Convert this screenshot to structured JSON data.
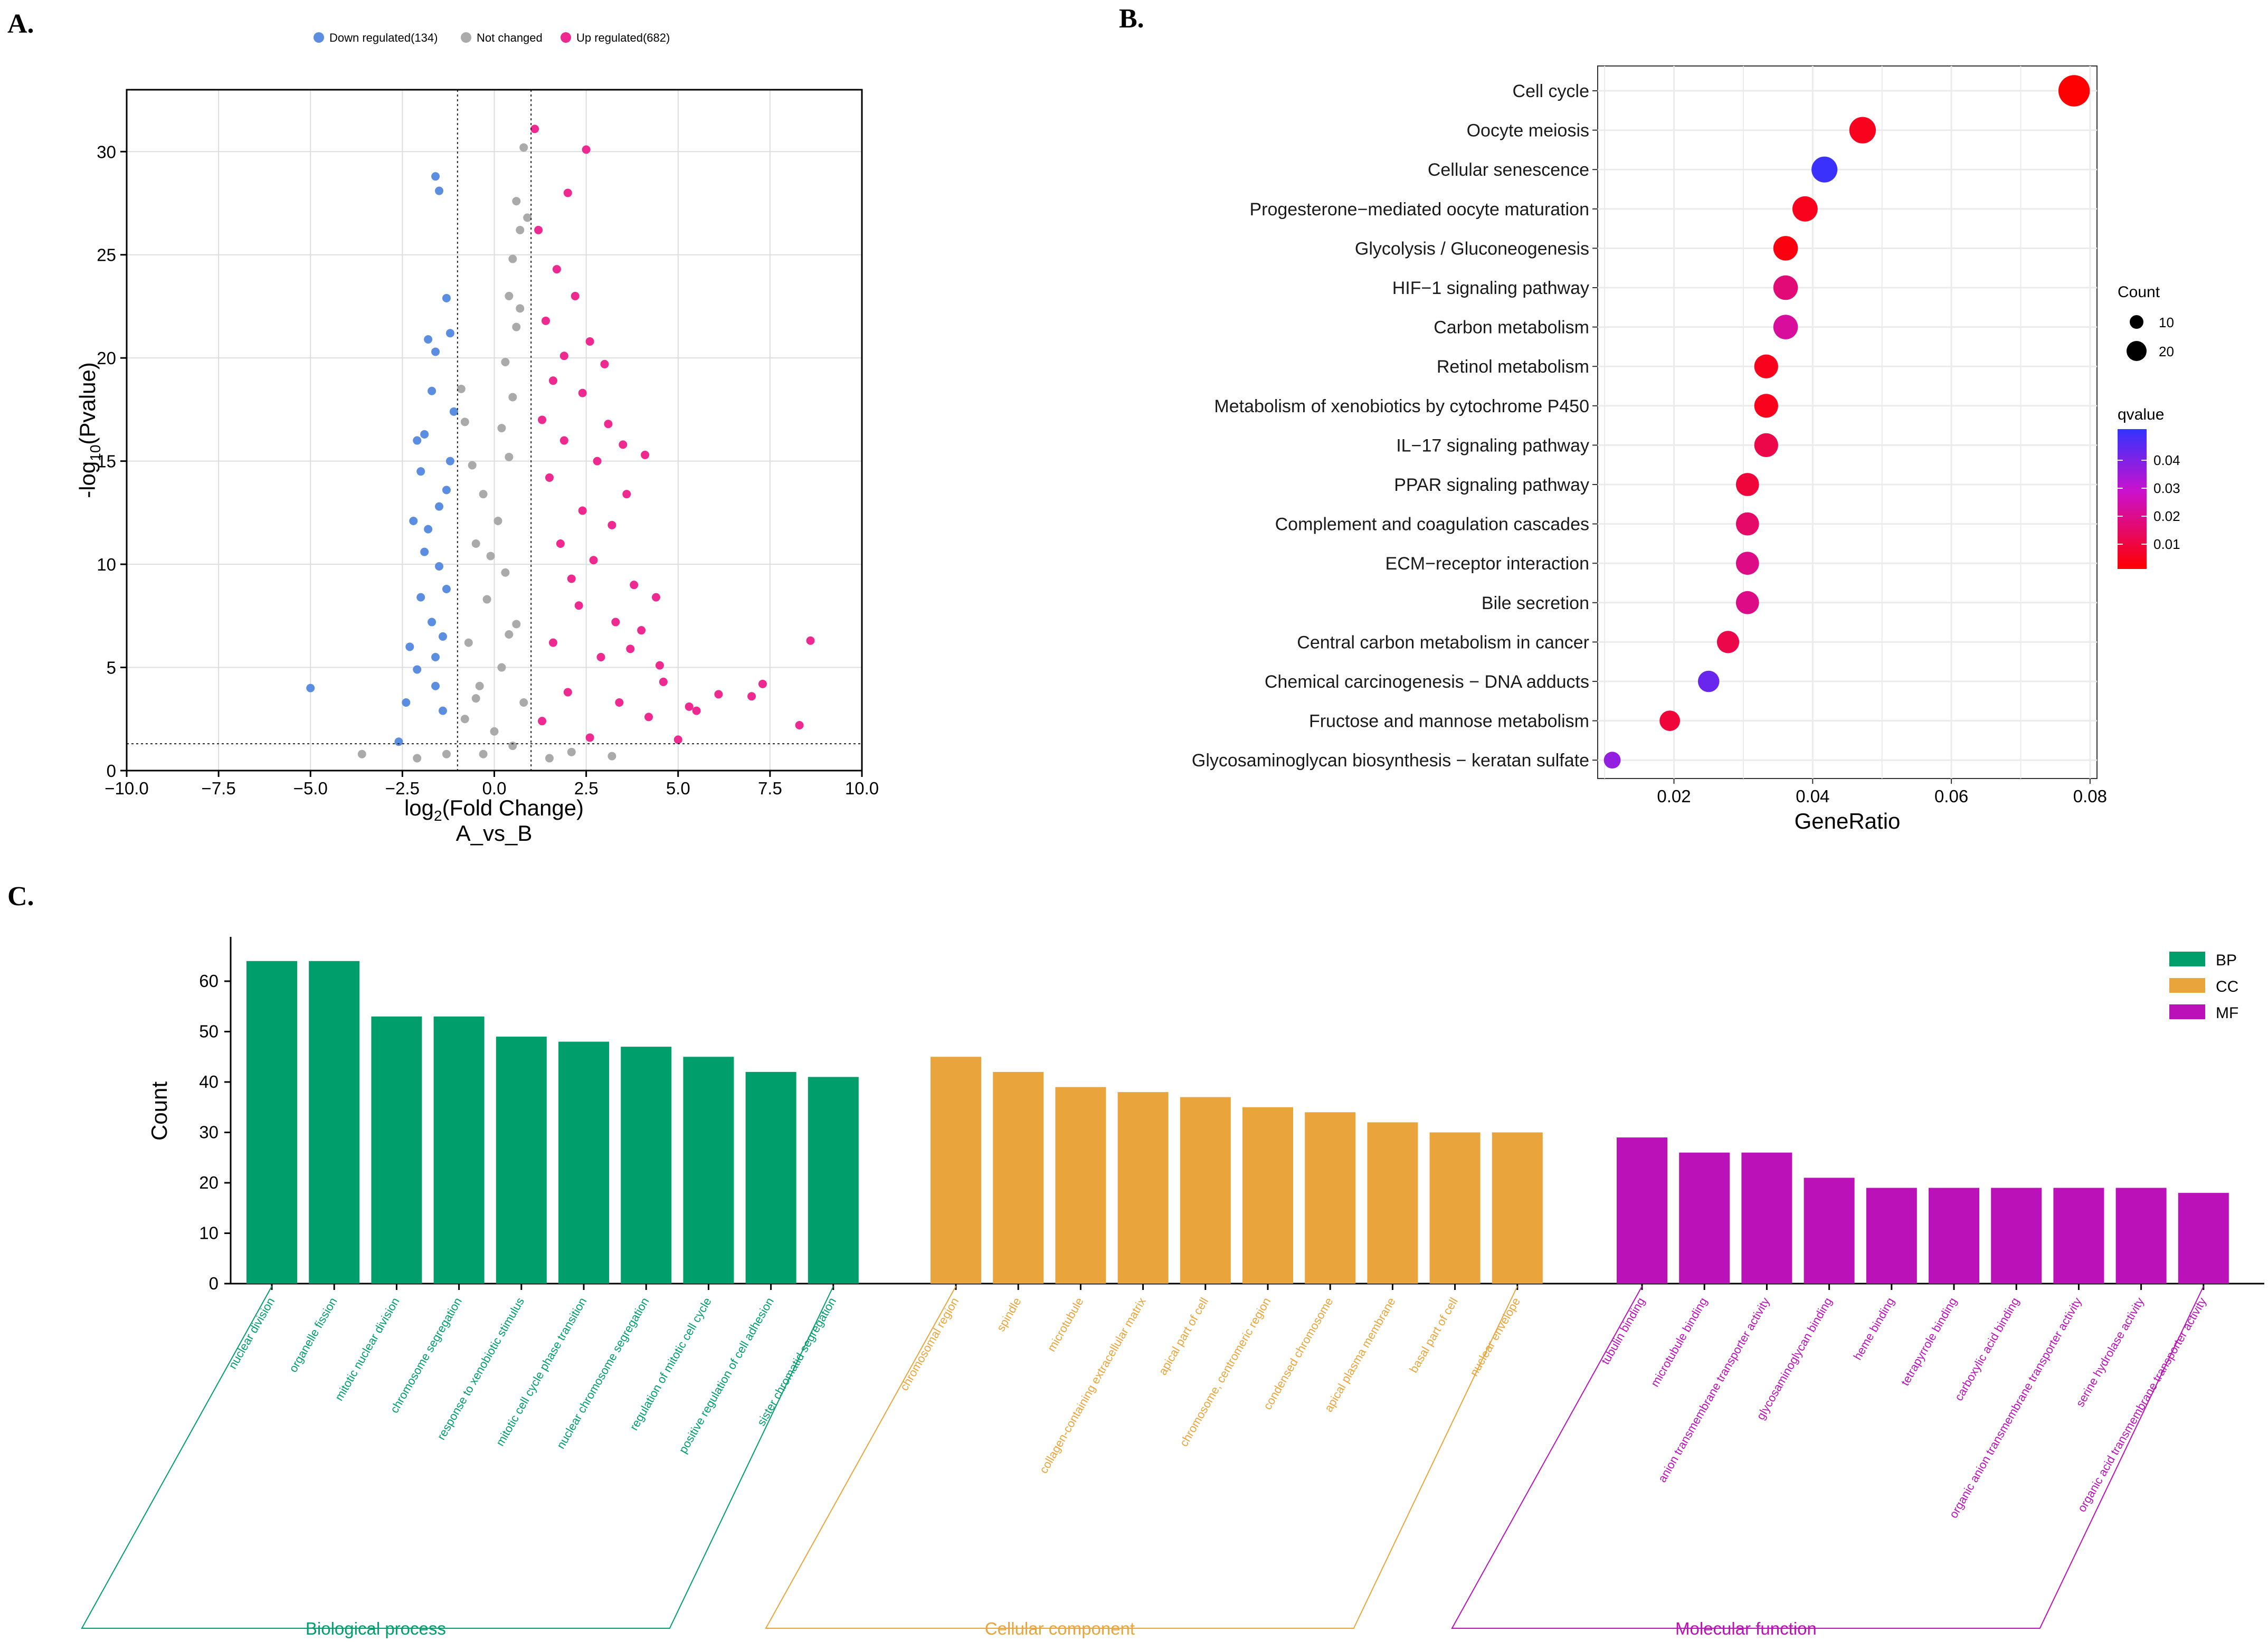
{
  "panels": {
    "a": "A.",
    "b": "B.",
    "c": "C."
  },
  "volcano": {
    "legend": [
      {
        "label": "Down regulated(134)",
        "color": "#5b8ee0"
      },
      {
        "label": "Not changed",
        "color": "#aaaaaa"
      },
      {
        "label": "Up regulated(682)",
        "color": "#ee2a90"
      }
    ],
    "ylabel_prefix": "-log",
    "ylabel_sub": "10",
    "ylabel_suffix": "(Pvalue)",
    "xlabel_prefix": "log",
    "xlabel_sub": "2",
    "xlabel_suffix": "(Fold Change)",
    "xlabel2": "A_vs_B",
    "xlim": [
      -10,
      10
    ],
    "ylim": [
      0,
      33
    ],
    "xticks": [
      "−10.0",
      "−7.5",
      "−5.0",
      "−2.5",
      "0.0",
      "2.5",
      "5.0",
      "7.5",
      "10.0"
    ],
    "yticks": [
      "0",
      "5",
      "10",
      "15",
      "20",
      "25",
      "30"
    ],
    "fc_threshold": [
      -1,
      1
    ],
    "p_threshold": 1.3
  },
  "chart_data": [
    {
      "type": "scatter",
      "title": "",
      "xlabel": "log2(Fold Change) A_vs_B",
      "ylabel": "-log10(Pvalue)",
      "xlim": [
        -10,
        10
      ],
      "ylim": [
        0,
        33
      ],
      "grid": true,
      "legend_position": "top",
      "series": [
        {
          "name": "Down regulated(134)",
          "color": "#5b8ee0",
          "points": [
            [
              -5.0,
              4.0
            ],
            [
              -2.6,
              1.4
            ],
            [
              -1.6,
              28.8
            ],
            [
              -1.5,
              28.1
            ],
            [
              -1.3,
              22.9
            ],
            [
              -1.2,
              21.2
            ],
            [
              -1.8,
              20.9
            ],
            [
              -1.6,
              20.3
            ],
            [
              -2.2,
              12.1
            ],
            [
              -2.0,
              8.4
            ],
            [
              -2.1,
              4.9
            ],
            [
              -1.6,
              5.5
            ],
            [
              -1.4,
              6.5
            ],
            [
              -1.9,
              16.3
            ],
            [
              -1.7,
              18.4
            ],
            [
              -1.2,
              15.0
            ],
            [
              -2.3,
              6.0
            ],
            [
              -1.5,
              9.9
            ],
            [
              -1.8,
              11.7
            ],
            [
              -1.3,
              13.6
            ],
            [
              -2.0,
              14.5
            ],
            [
              -1.7,
              7.2
            ],
            [
              -2.4,
              3.3
            ],
            [
              -1.4,
              2.9
            ],
            [
              -1.1,
              17.4
            ],
            [
              -1.9,
              10.6
            ],
            [
              -1.5,
              12.8
            ],
            [
              -2.1,
              16.0
            ],
            [
              -1.3,
              8.8
            ],
            [
              -1.6,
              4.1
            ]
          ]
        },
        {
          "name": "Not changed",
          "color": "#aaaaaa",
          "points": [
            [
              0.8,
              30.2
            ],
            [
              0.6,
              27.6
            ],
            [
              0.7,
              26.2
            ],
            [
              0.5,
              24.8
            ],
            [
              0.4,
              23.0
            ],
            [
              0.6,
              21.5
            ],
            [
              0.3,
              19.8
            ],
            [
              0.5,
              18.1
            ],
            [
              0.2,
              16.6
            ],
            [
              0.4,
              15.2
            ],
            [
              -0.3,
              13.4
            ],
            [
              0.1,
              12.1
            ],
            [
              -0.5,
              11.0
            ],
            [
              0.3,
              9.6
            ],
            [
              -0.2,
              8.3
            ],
            [
              0.6,
              7.1
            ],
            [
              -0.7,
              6.2
            ],
            [
              0.2,
              5.0
            ],
            [
              -0.4,
              4.1
            ],
            [
              0.8,
              3.3
            ],
            [
              -0.8,
              2.5
            ],
            [
              0.0,
              1.9
            ],
            [
              0.5,
              1.2
            ],
            [
              -0.3,
              0.8
            ],
            [
              1.5,
              0.6
            ],
            [
              2.1,
              0.9
            ],
            [
              3.2,
              0.7
            ],
            [
              -1.3,
              0.8
            ],
            [
              -2.1,
              0.6
            ],
            [
              -3.6,
              0.8
            ],
            [
              -0.9,
              18.5
            ],
            [
              -0.8,
              16.9
            ],
            [
              -0.6,
              14.8
            ],
            [
              0.9,
              26.8
            ],
            [
              0.7,
              22.4
            ],
            [
              -0.1,
              10.4
            ],
            [
              0.4,
              6.6
            ],
            [
              -0.5,
              3.5
            ]
          ]
        },
        {
          "name": "Up regulated(682)",
          "color": "#ee2a90",
          "points": [
            [
              1.1,
              31.1
            ],
            [
              2.5,
              30.1
            ],
            [
              2.0,
              28.0
            ],
            [
              1.7,
              24.3
            ],
            [
              2.2,
              23.0
            ],
            [
              1.4,
              21.8
            ],
            [
              2.6,
              20.8
            ],
            [
              3.0,
              19.7
            ],
            [
              1.6,
              18.9
            ],
            [
              3.1,
              16.8
            ],
            [
              1.9,
              16.0
            ],
            [
              3.5,
              15.8
            ],
            [
              2.8,
              15.0
            ],
            [
              3.6,
              13.4
            ],
            [
              4.1,
              15.3
            ],
            [
              2.4,
              12.6
            ],
            [
              3.2,
              11.9
            ],
            [
              1.8,
              11.0
            ],
            [
              2.7,
              10.2
            ],
            [
              3.8,
              9.0
            ],
            [
              4.4,
              8.4
            ],
            [
              2.3,
              8.0
            ],
            [
              3.3,
              7.2
            ],
            [
              4.0,
              6.8
            ],
            [
              3.7,
              5.9
            ],
            [
              4.5,
              5.1
            ],
            [
              2.9,
              5.5
            ],
            [
              4.6,
              4.3
            ],
            [
              5.3,
              3.1
            ],
            [
              5.5,
              2.9
            ],
            [
              6.1,
              3.7
            ],
            [
              7.0,
              3.6
            ],
            [
              7.3,
              4.2
            ],
            [
              8.6,
              6.3
            ],
            [
              8.3,
              2.2
            ],
            [
              4.2,
              2.6
            ],
            [
              5.0,
              1.5
            ],
            [
              1.2,
              26.2
            ],
            [
              1.3,
              17.0
            ],
            [
              1.5,
              14.2
            ],
            [
              2.1,
              9.3
            ],
            [
              1.6,
              6.2
            ],
            [
              2.0,
              3.8
            ],
            [
              1.3,
              2.4
            ],
            [
              2.6,
              1.6
            ],
            [
              3.4,
              3.3
            ],
            [
              1.9,
              20.1
            ],
            [
              2.4,
              18.3
            ]
          ]
        }
      ]
    },
    {
      "type": "scatter",
      "title": "",
      "xlabel": "GeneRatio",
      "ylabel": "",
      "xlim": [
        0.009,
        0.081
      ],
      "xticks": [
        "0.02",
        "0.04",
        "0.06",
        "0.08"
      ],
      "grid": true,
      "legend_position": "right",
      "size_legend_title": "Count",
      "size_legend": [
        10,
        20
      ],
      "color_legend_title": "qvalue",
      "color_legend_ticks": [
        "0.04",
        "0.03",
        "0.02",
        "0.01"
      ],
      "qvalue_range": [
        0.0,
        0.05
      ],
      "terms": [
        {
          "name": "Cell cycle",
          "ratio": 0.0777,
          "count": 22,
          "q": 0.0003
        },
        {
          "name": "Oocyte meiosis",
          "ratio": 0.0472,
          "count": 13,
          "q": 0.004
        },
        {
          "name": "Cellular senescence",
          "ratio": 0.0417,
          "count": 12,
          "q": 0.049
        },
        {
          "name": "Progesterone−mediated oocyte maturation",
          "ratio": 0.0389,
          "count": 11,
          "q": 0.004
        },
        {
          "name": "Glycolysis / Gluconeogenesis",
          "ratio": 0.0361,
          "count": 10,
          "q": 0.002
        },
        {
          "name": "HIF−1 signaling pathway",
          "ratio": 0.0361,
          "count": 10,
          "q": 0.016
        },
        {
          "name": "Carbon metabolism",
          "ratio": 0.0361,
          "count": 10,
          "q": 0.021
        },
        {
          "name": "Retinol metabolism",
          "ratio": 0.0333,
          "count": 9,
          "q": 0.004
        },
        {
          "name": "Metabolism of xenobiotics by cytochrome P450",
          "ratio": 0.0333,
          "count": 9,
          "q": 0.004
        },
        {
          "name": "IL−17 signaling pathway",
          "ratio": 0.0333,
          "count": 9,
          "q": 0.01
        },
        {
          "name": "PPAR signaling pathway",
          "ratio": 0.0306,
          "count": 8,
          "q": 0.008
        },
        {
          "name": "Complement and coagulation cascades",
          "ratio": 0.0306,
          "count": 8,
          "q": 0.014
        },
        {
          "name": "ECM−receptor interaction",
          "ratio": 0.0306,
          "count": 8,
          "q": 0.018
        },
        {
          "name": "Bile secretion",
          "ratio": 0.0306,
          "count": 8,
          "q": 0.018
        },
        {
          "name": "Central carbon metabolism in cancer",
          "ratio": 0.0278,
          "count": 7,
          "q": 0.01
        },
        {
          "name": "Chemical carcinogenesis − DNA adducts",
          "ratio": 0.025,
          "count": 6,
          "q": 0.042
        },
        {
          "name": "Fructose and mannose metabolism",
          "ratio": 0.0194,
          "count": 5,
          "q": 0.008
        },
        {
          "name": "Glycosaminoglycan biosynthesis − keratan sulfate",
          "ratio": 0.0111,
          "count": 2,
          "q": 0.036
        }
      ]
    },
    {
      "type": "bar",
      "title": "",
      "xlabel": "",
      "ylabel": "Count",
      "ylim": [
        0,
        64
      ],
      "yticks": [
        "0",
        "10",
        "20",
        "30",
        "40",
        "50",
        "60"
      ],
      "legend_position": "top-right",
      "legend": [
        {
          "key": "BP",
          "color": "#009e6a"
        },
        {
          "key": "CC",
          "color": "#e9a53b"
        },
        {
          "key": "MF",
          "color": "#bb11b8"
        }
      ],
      "groups": [
        {
          "key": "BP",
          "name": "Biological process",
          "color": "#009e6a",
          "categories": [
            "nuclear division",
            "organelle fission",
            "mitotic nuclear division",
            "chromosome segregation",
            "response to xenobiotic stimulus",
            "mitotic cell cycle phase transition",
            "nuclear chromosome segregation",
            "regulation of mitotic cell cycle",
            "positive regulation of cell adhesion",
            "sister chromatid segregation"
          ],
          "values": [
            64,
            64,
            53,
            53,
            49,
            48,
            47,
            45,
            42,
            41
          ]
        },
        {
          "key": "CC",
          "name": "Cellular component",
          "color": "#e9a53b",
          "categories": [
            "chromosomal region",
            "spindle",
            "microtubule",
            "collagen-containing extracellular matrix",
            "apical part of cell",
            "chromosome, centromeric region",
            "condensed chromosome",
            "apical plasma membrane",
            "basal part of cell",
            "nuclear envelope"
          ],
          "values": [
            45,
            42,
            39,
            38,
            37,
            35,
            34,
            32,
            30,
            30
          ]
        },
        {
          "key": "MF",
          "name": "Molecular function",
          "color": "#bb11b8",
          "categories": [
            "tubulin binding",
            "microtubule binding",
            "anion transmembrane transporter activity",
            "glycosaminoglycan binding",
            "heme binding",
            "tetrapyrrole binding",
            "carboxylic acid binding",
            "organic anion transmembrane transporter activity",
            "serine hydrolase activity",
            "organic acid transmembrane transporter activity"
          ],
          "values": [
            29,
            26,
            26,
            21,
            19,
            19,
            19,
            19,
            19,
            18
          ]
        }
      ]
    }
  ]
}
